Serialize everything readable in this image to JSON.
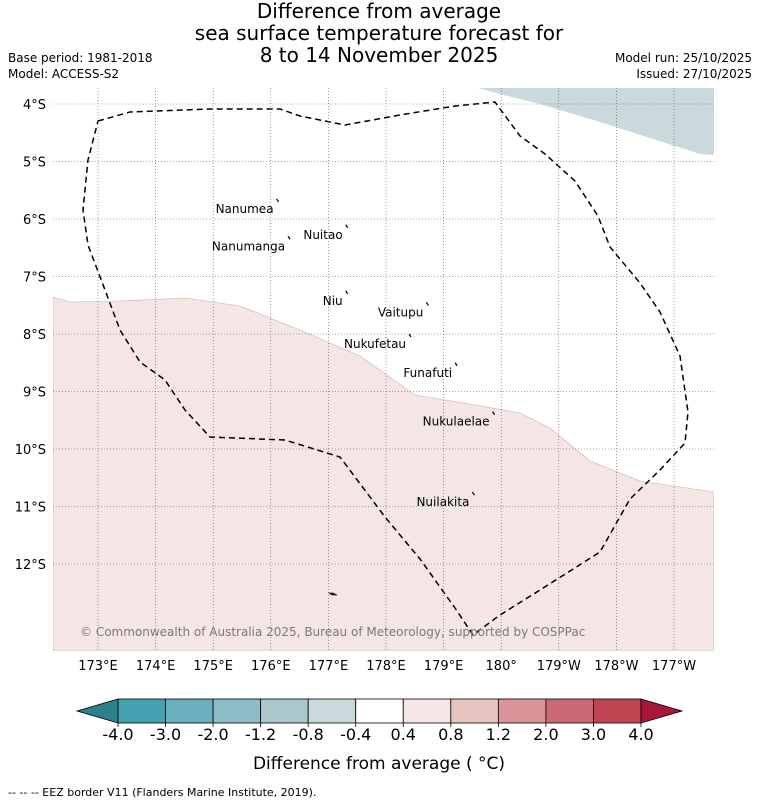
{
  "title": {
    "line1": "Difference from average",
    "line2": "sea surface temperature forecast for",
    "line3": "8 to 14 November 2025"
  },
  "meta": {
    "base_period": "Base period: 1981-2018",
    "model": "Model: ACCESS-S2",
    "model_run": "Model run: 25/10/2025",
    "issued": "Issued: 27/10/2025"
  },
  "map": {
    "lon_ticks": [
      "173°E",
      "174°E",
      "175°E",
      "176°E",
      "177°E",
      "178°E",
      "179°E",
      "180°",
      "179°W",
      "178°W",
      "177°W"
    ],
    "lat_ticks": [
      "4°S",
      "5°S",
      "6°S",
      "7°S",
      "8°S",
      "9°S",
      "10°S",
      "11°S",
      "12°S"
    ],
    "islands": [
      {
        "name": "Nanumea",
        "lon": 176.1,
        "lat": -5.65
      },
      {
        "name": "Nuitao",
        "lon": 177.3,
        "lat": -6.1
      },
      {
        "name": "Nanumanga",
        "lon": 176.3,
        "lat": -6.3
      },
      {
        "name": "Niu",
        "lon": 177.3,
        "lat": -7.25
      },
      {
        "name": "Vaitupu",
        "lon": 178.7,
        "lat": -7.45
      },
      {
        "name": "Nukufetau",
        "lon": 178.4,
        "lat": -8.0
      },
      {
        "name": "Funafuti",
        "lon": 179.2,
        "lat": -8.5
      },
      {
        "name": "Nukulaelae",
        "lon": 179.85,
        "lat": -9.35
      },
      {
        "name": "Nuilakita",
        "lon": 179.5,
        "lat": -10.75
      }
    ],
    "copyright": "© Commonwealth of Australia 2025, Bureau of Meteorology, supported by COSPPac",
    "colors": {
      "positive_anomaly": "#f3e6e4",
      "negative_anomaly": "#c9d9dc",
      "grid": "#555555",
      "eez_line": "#000000"
    }
  },
  "colorbar": {
    "label": "Difference from average ( °C)",
    "tick_labels": [
      "-4.0",
      "-3.0",
      "-2.0",
      "-1.2",
      "-0.8",
      "-0.4",
      "0.4",
      "0.8",
      "1.2",
      "2.0",
      "3.0",
      "4.0"
    ],
    "under_color": "#2e7f8c",
    "over_color": "#a8173a",
    "colors": [
      "#45a0b2",
      "#6aafbd",
      "#8cbcc5",
      "#abc9cd",
      "#c9d9dc",
      "#ffffff",
      "#f3e6e4",
      "#e8c5c1",
      "#d9949a",
      "#cb6a74",
      "#bf4553"
    ]
  },
  "footer": {
    "eez_legend": "--  --  -- EEZ border V11 (Flanders Marine Institute, 2019)."
  }
}
